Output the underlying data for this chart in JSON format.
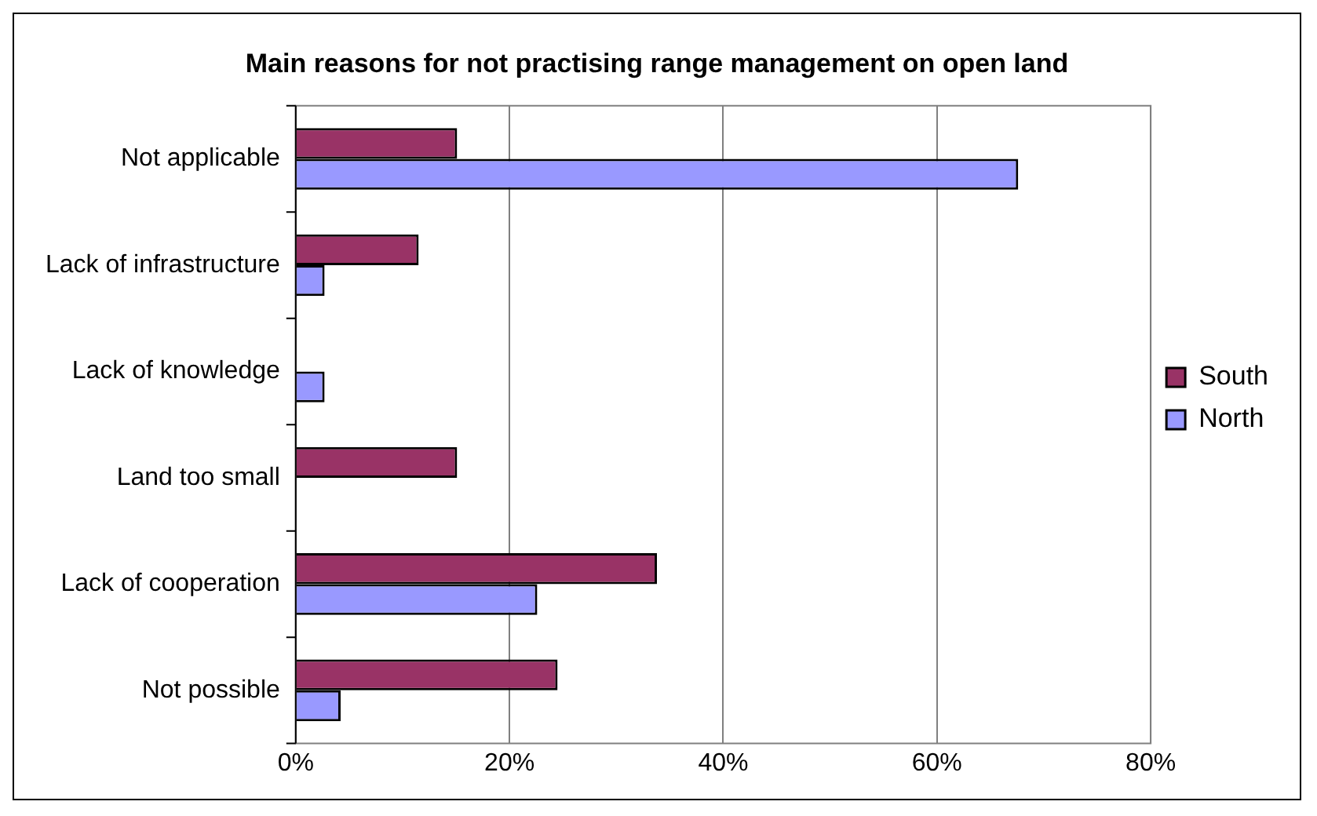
{
  "chart_data": {
    "type": "bar",
    "orientation": "horizontal",
    "title": "Main reasons for not practising range management on open land",
    "categories": [
      "Not applicable",
      "Lack of infrastructure",
      "Lack of knowledge",
      "Land too small",
      "Lack of cooperation",
      "Not possible"
    ],
    "series": [
      {
        "name": "South",
        "color": "#993366",
        "values": [
          15.1,
          11.5,
          0,
          15.1,
          33.8,
          24.5
        ]
      },
      {
        "name": "North",
        "color": "#9999ff",
        "values": [
          67.6,
          2.7,
          2.7,
          0,
          22.6,
          4.2
        ]
      }
    ],
    "xlim": [
      0,
      80
    ],
    "xticks": [
      {
        "value": 0,
        "label": "0%"
      },
      {
        "value": 20,
        "label": "20%"
      },
      {
        "value": 40,
        "label": "40%"
      },
      {
        "value": 60,
        "label": "60%"
      },
      {
        "value": 80,
        "label": "80%"
      }
    ],
    "grid": "x",
    "legend": "right"
  }
}
